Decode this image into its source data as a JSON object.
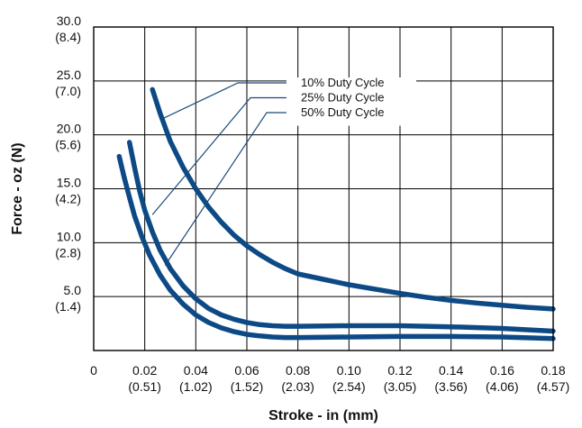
{
  "chart_data": {
    "type": "line",
    "xlabel": "Stroke - in (mm)",
    "ylabel": "Force - oz (N)",
    "xlim": [
      0,
      0.18
    ],
    "ylim": [
      0,
      30
    ],
    "grid": true,
    "x_ticks": [
      {
        "value": 0,
        "label": "0",
        "sublabel": ""
      },
      {
        "value": 0.02,
        "label": "0.02",
        "sublabel": "(0.51)"
      },
      {
        "value": 0.04,
        "label": "0.04",
        "sublabel": "(1.02)"
      },
      {
        "value": 0.06,
        "label": "0.06",
        "sublabel": "(1.52)"
      },
      {
        "value": 0.08,
        "label": "0.08",
        "sublabel": "(2.03)"
      },
      {
        "value": 0.1,
        "label": "0.10",
        "sublabel": "(2.54)"
      },
      {
        "value": 0.12,
        "label": "0.12",
        "sublabel": "(3.05)"
      },
      {
        "value": 0.14,
        "label": "0.14",
        "sublabel": "(3.56)"
      },
      {
        "value": 0.16,
        "label": "0.16",
        "sublabel": "(4.06)"
      },
      {
        "value": 0.18,
        "label": "0.18",
        "sublabel": "(4.57)"
      }
    ],
    "y_ticks": [
      {
        "value": 5,
        "label": "5.0",
        "sublabel": "(1.4)"
      },
      {
        "value": 10,
        "label": "10.0",
        "sublabel": "(2.8)"
      },
      {
        "value": 15,
        "label": "15.0",
        "sublabel": "(4.2)"
      },
      {
        "value": 20,
        "label": "20.0",
        "sublabel": "(5.6)"
      },
      {
        "value": 25,
        "label": "25.0",
        "sublabel": "(7.0)"
      },
      {
        "value": 30,
        "label": "30.0",
        "sublabel": "(8.4)"
      }
    ],
    "series": [
      {
        "name": "10% Duty Cycle",
        "color": "#0d4a85",
        "points": [
          [
            0.023,
            24.2
          ],
          [
            0.026,
            22.0
          ],
          [
            0.03,
            19.4
          ],
          [
            0.035,
            17.0
          ],
          [
            0.04,
            15.0
          ],
          [
            0.045,
            13.3
          ],
          [
            0.05,
            11.9
          ],
          [
            0.055,
            10.7
          ],
          [
            0.06,
            9.7
          ],
          [
            0.065,
            8.9
          ],
          [
            0.07,
            8.2
          ],
          [
            0.075,
            7.6
          ],
          [
            0.08,
            7.1
          ],
          [
            0.09,
            6.6
          ],
          [
            0.1,
            6.1
          ],
          [
            0.11,
            5.7
          ],
          [
            0.12,
            5.3
          ],
          [
            0.13,
            4.95
          ],
          [
            0.14,
            4.65
          ],
          [
            0.15,
            4.4
          ],
          [
            0.16,
            4.2
          ],
          [
            0.17,
            4.0
          ],
          [
            0.18,
            3.85
          ]
        ]
      },
      {
        "name": "25% Duty Cycle",
        "color": "#0d4a85",
        "points": [
          [
            0.014,
            19.3
          ],
          [
            0.016,
            17.0
          ],
          [
            0.018,
            14.8
          ],
          [
            0.02,
            13.0
          ],
          [
            0.023,
            11.0
          ],
          [
            0.026,
            9.3
          ],
          [
            0.03,
            7.6
          ],
          [
            0.035,
            6.0
          ],
          [
            0.04,
            4.8
          ],
          [
            0.045,
            3.9
          ],
          [
            0.05,
            3.3
          ],
          [
            0.055,
            2.9
          ],
          [
            0.06,
            2.6
          ],
          [
            0.065,
            2.4
          ],
          [
            0.07,
            2.3
          ],
          [
            0.075,
            2.25
          ],
          [
            0.08,
            2.25
          ],
          [
            0.1,
            2.3
          ],
          [
            0.12,
            2.3
          ],
          [
            0.14,
            2.2
          ],
          [
            0.16,
            2.05
          ],
          [
            0.18,
            1.8
          ]
        ]
      },
      {
        "name": "50% Duty Cycle",
        "color": "#0d4a85",
        "points": [
          [
            0.01,
            18.0
          ],
          [
            0.012,
            16.0
          ],
          [
            0.014,
            14.2
          ],
          [
            0.016,
            12.5
          ],
          [
            0.019,
            10.5
          ],
          [
            0.022,
            8.8
          ],
          [
            0.026,
            7.0
          ],
          [
            0.03,
            5.6
          ],
          [
            0.035,
            4.3
          ],
          [
            0.04,
            3.3
          ],
          [
            0.045,
            2.6
          ],
          [
            0.05,
            2.1
          ],
          [
            0.055,
            1.75
          ],
          [
            0.06,
            1.5
          ],
          [
            0.065,
            1.35
          ],
          [
            0.07,
            1.25
          ],
          [
            0.075,
            1.2
          ],
          [
            0.08,
            1.2
          ],
          [
            0.1,
            1.25
          ],
          [
            0.12,
            1.3
          ],
          [
            0.14,
            1.3
          ],
          [
            0.16,
            1.25
          ],
          [
            0.18,
            1.1
          ]
        ]
      }
    ],
    "legend": {
      "placement": "top-right",
      "entries": [
        "10% Duty Cycle",
        "25% Duty Cycle",
        "50% Duty Cycle"
      ]
    }
  }
}
